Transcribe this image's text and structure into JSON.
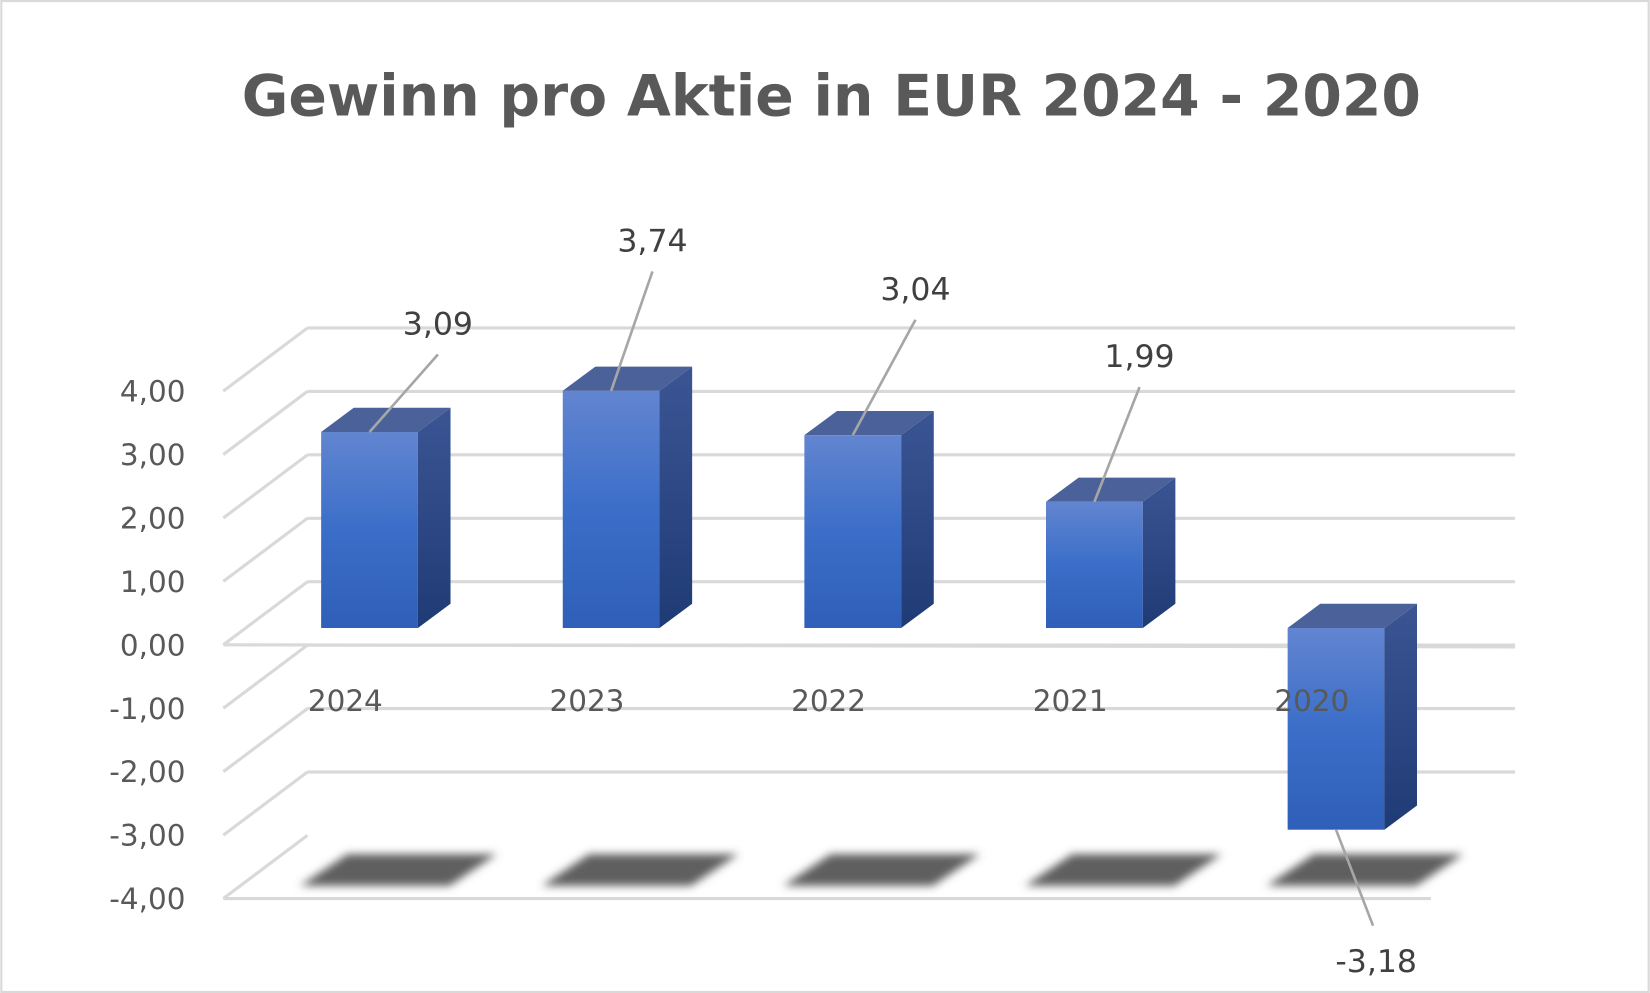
{
  "chart_data": {
    "type": "bar",
    "style": "3d-column",
    "title": "Gewinn pro Aktie in EUR 2024 - 2020",
    "categories": [
      "2024",
      "2023",
      "2022",
      "2021",
      "2020"
    ],
    "values": [
      3.09,
      3.74,
      3.04,
      1.99,
      -3.18
    ],
    "data_labels": [
      "3,09",
      "3,74",
      "3,04",
      "1,99",
      "-3,18"
    ],
    "ylim": [
      -4,
      4
    ],
    "yticks": [
      "4,00",
      "3,00",
      "2,00",
      "1,00",
      "0,00",
      "-1,00",
      "-2,00",
      "-3,00",
      "-4,00"
    ],
    "ytick_values": [
      4,
      3,
      2,
      1,
      0,
      -1,
      -2,
      -3,
      -4
    ],
    "grid": true,
    "legend": "none",
    "colors": {
      "bar_front": "#3a6cc9",
      "bar_top": "#4a6299",
      "bar_side": "#2a4a8a",
      "grid": "#d9d9d9",
      "text": "#595959",
      "shadow": "#5f5f5f"
    }
  }
}
